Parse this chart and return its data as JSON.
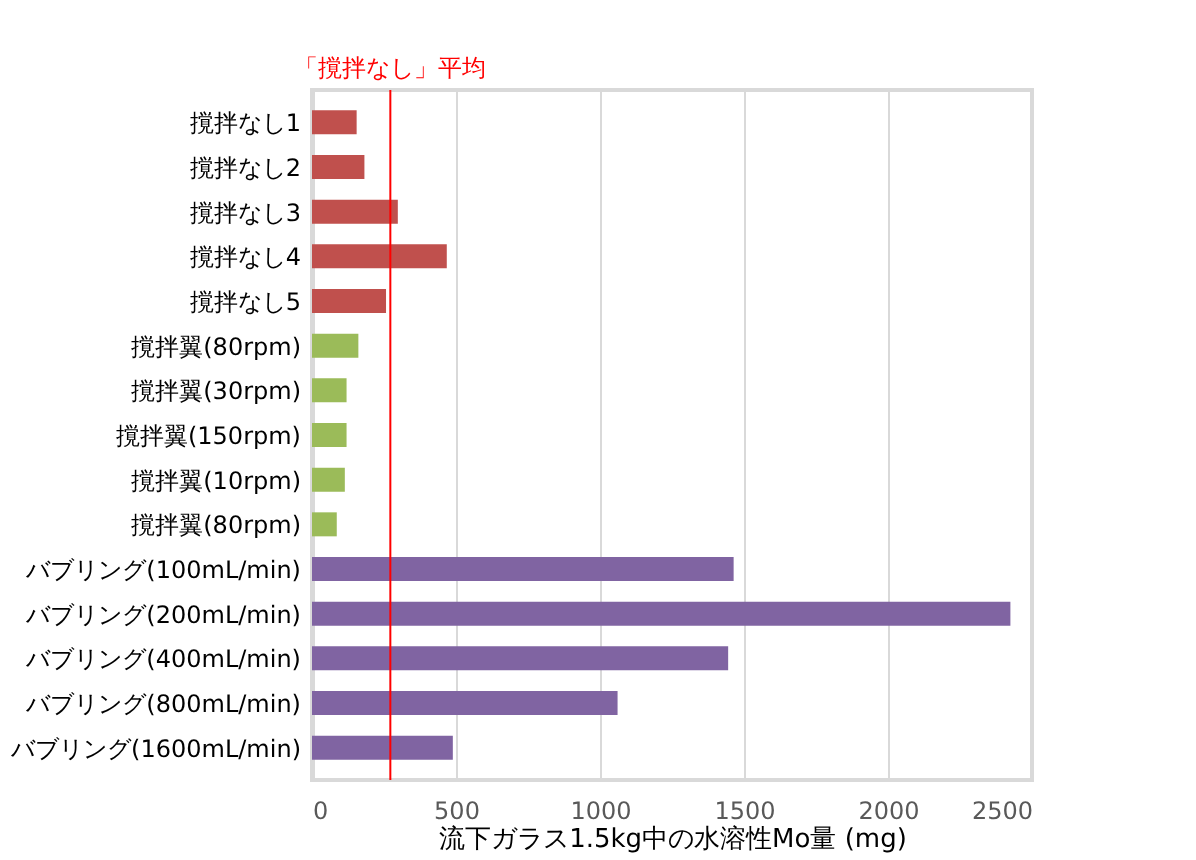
{
  "chart_data": {
    "type": "bar",
    "orientation": "horizontal",
    "xlabel": "流下ガラス1.5kg中の水溶性Mo量 (mg)",
    "categories": [
      "撹拌なし1",
      "撹拌なし2",
      "撹拌なし3",
      "撹拌なし4",
      "撹拌なし5",
      "撹拌翼(80rpm)",
      "撹拌翼(30rpm)",
      "撹拌翼(150rpm)",
      "撹拌翼(10rpm)",
      "撹拌翼(80rpm)",
      "バブリング(100mL/min)",
      "バブリング(200mL/min)",
      "バブリング(400mL/min)",
      "バブリング(800mL/min)",
      "バブリング(1600mL/min)"
    ],
    "values": [
      155,
      182,
      298,
      468,
      257,
      161,
      120,
      120,
      114,
      86,
      1464,
      2425,
      1445,
      1061,
      489
    ],
    "colors": [
      "#c0504d",
      "#c0504d",
      "#c0504d",
      "#c0504d",
      "#c0504d",
      "#9bbb59",
      "#9bbb59",
      "#9bbb59",
      "#9bbb59",
      "#9bbb59",
      "#8064a2",
      "#8064a2",
      "#8064a2",
      "#8064a2",
      "#8064a2"
    ],
    "xlim": [
      0,
      2500
    ],
    "xticks": [
      0,
      500,
      1000,
      1500,
      2000,
      2500
    ],
    "grid": "x",
    "ref_lines": [
      {
        "axis": "x",
        "value": 272,
        "label": "「撹拌なし」平均",
        "color": "#ff0000"
      }
    ]
  }
}
